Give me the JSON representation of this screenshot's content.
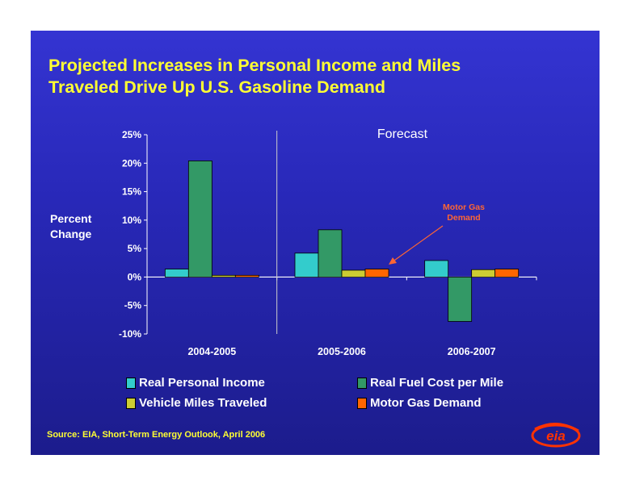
{
  "title": {
    "line1": "Projected Increases in Personal Income and Miles",
    "line2": "Traveled Drive Up U.S. Gasoline Demand"
  },
  "source": "Source:  EIA, Short-Term Energy Outlook, April 2006",
  "logo_text": "eia",
  "chart_data": {
    "type": "bar",
    "categories": [
      "2004-2005",
      "2005-2006",
      "2006-2007"
    ],
    "series": [
      {
        "name": "Real Personal Income",
        "values": [
          1.4,
          4.2,
          2.9
        ],
        "color": "#33cccc"
      },
      {
        "name": "Real Fuel Cost per Mile",
        "values": [
          20.4,
          8.3,
          -7.8
        ],
        "color": "#339966"
      },
      {
        "name": "Vehicle Miles Traveled",
        "values": [
          0.3,
          1.2,
          1.3
        ],
        "color": "#cccc33"
      },
      {
        "name": "Motor Gas Demand",
        "values": [
          0.3,
          1.4,
          1.4
        ],
        "color": "#ff6600"
      }
    ],
    "ylabel": [
      "Percent",
      "Change"
    ],
    "ylim": [
      -10,
      25
    ],
    "yticks": [
      25,
      20,
      15,
      10,
      5,
      0,
      -5,
      -10
    ],
    "ytick_labels": [
      "25%",
      "20%",
      "15%",
      "10%",
      "5%",
      "0%",
      "-5%",
      "-10%"
    ],
    "forecast_label": "Forecast",
    "annotation": {
      "text": [
        "Motor Gas",
        "Demand"
      ],
      "color": "#ff6633"
    },
    "legend_position": "bottom",
    "grid": false
  }
}
